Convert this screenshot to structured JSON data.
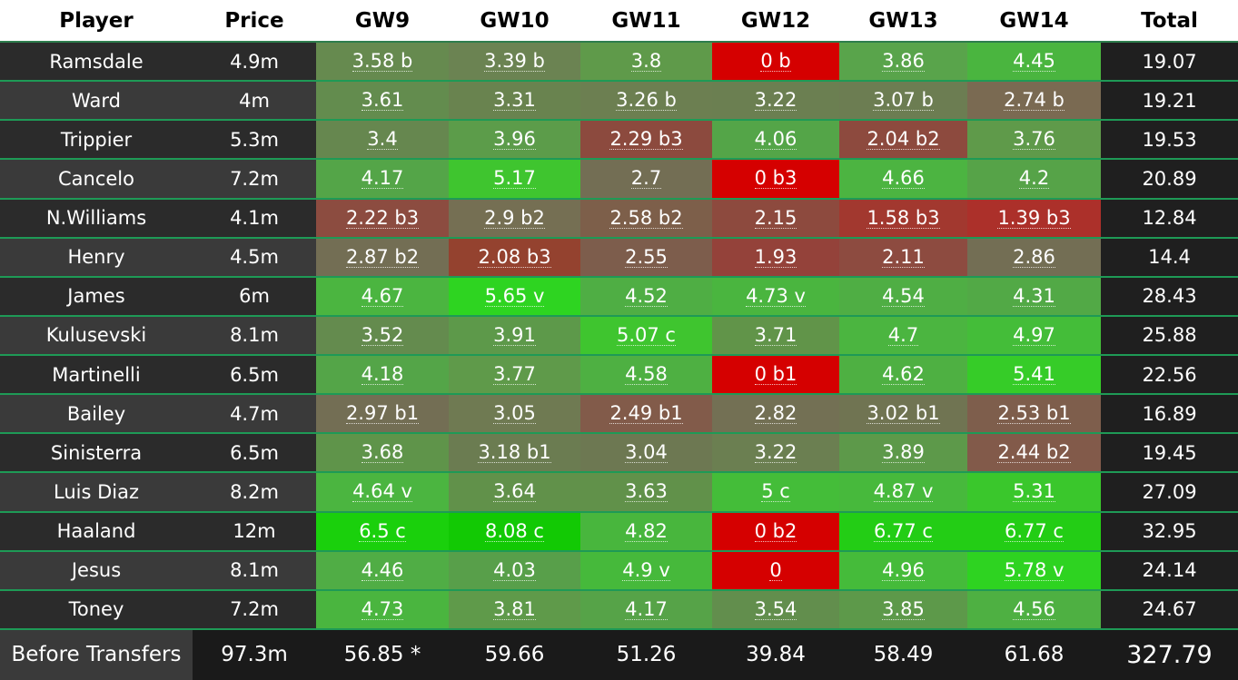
{
  "headers": [
    "Player",
    "Price",
    "GW9",
    "GW10",
    "GW11",
    "GW12",
    "GW13",
    "GW14",
    "Total"
  ],
  "rows": [
    {
      "name": "Ramsdale",
      "price": "4.9m",
      "gw": [
        "3.58 b",
        "3.39 b",
        "3.8",
        "0 b",
        "3.86",
        "4.45"
      ],
      "colors": [
        "#668a4f",
        "#6b8352",
        "#5f9a4a",
        "#d50000",
        "#59a44b",
        "#4ab53f"
      ],
      "total": "19.07"
    },
    {
      "name": "Ward",
      "price": "4m",
      "gw": [
        "3.61",
        "3.31",
        "3.26 b",
        "3.22",
        "3.07 b",
        "2.74 b"
      ],
      "colors": [
        "#638c4e",
        "#69834f",
        "#6c7f51",
        "#6b7f51",
        "#6c7d52",
        "#7a6a52"
      ],
      "total": "19.21"
    },
    {
      "name": "Trippier",
      "price": "5.3m",
      "gw": [
        "3.4",
        "3.96",
        "2.29 b3",
        "4.06",
        "2.04 b2",
        "3.76"
      ],
      "colors": [
        "#66874f",
        "#5c9c4a",
        "#8c4a3e",
        "#54a548",
        "#8d4a3e",
        "#5f9a4a"
      ],
      "total": "19.53"
    },
    {
      "name": "Cancelo",
      "price": "7.2m",
      "gw": [
        "4.17",
        "5.17",
        "2.7",
        "0 b3",
        "4.66",
        "4.2"
      ],
      "colors": [
        "#54a548",
        "#3fc52f",
        "#736e54",
        "#d50000",
        "#4cb441",
        "#56a348"
      ],
      "total": "20.89"
    },
    {
      "name": "N.Williams",
      "price": "4.1m",
      "gw": [
        "2.22 b3",
        "2.9 b2",
        "2.58 b2",
        "2.15",
        "1.58 b3",
        "1.39 b3"
      ],
      "colors": [
        "#8c4c40",
        "#756f53",
        "#7d5f4a",
        "#8d4a3e",
        "#a2382f",
        "#ac302a"
      ],
      "total": "12.84"
    },
    {
      "name": "Henry",
      "price": "4.5m",
      "gw": [
        "2.87 b2",
        "2.08 b3",
        "2.55",
        "1.93",
        "2.11",
        "2.86"
      ],
      "colors": [
        "#736e54",
        "#94422f",
        "#7d5d4c",
        "#94423a",
        "#8d4b40",
        "#736e54"
      ],
      "total": "14.4"
    },
    {
      "name": "James",
      "price": "6m",
      "gw": [
        "4.67",
        "5.65 v",
        "4.52",
        "4.73 v",
        "4.54",
        "4.31"
      ],
      "colors": [
        "#4bb540",
        "#2ed421",
        "#4fae44",
        "#4ab53f",
        "#4fae44",
        "#52a946"
      ],
      "total": "28.43"
    },
    {
      "name": "Kulusevski",
      "price": "8.1m",
      "gw": [
        "3.52",
        "3.91",
        "5.07 c",
        "3.71",
        "4.7",
        "4.97"
      ],
      "colors": [
        "#648b4e",
        "#5d994a",
        "#3fc52f",
        "#619449",
        "#4bb540",
        "#44bd39"
      ],
      "total": "25.88"
    },
    {
      "name": "Martinelli",
      "price": "6.5m",
      "gw": [
        "4.18",
        "3.77",
        "4.58",
        "0 b1",
        "4.62",
        "5.41"
      ],
      "colors": [
        "#54a548",
        "#5f9a4a",
        "#4eb042",
        "#d50000",
        "#4eb042",
        "#36cc28"
      ],
      "total": "22.56"
    },
    {
      "name": "Bailey",
      "price": "4.7m",
      "gw": [
        "2.97 b1",
        "3.05",
        "2.49 b1",
        "2.82",
        "3.02 b1",
        "2.53 b1"
      ],
      "colors": [
        "#736e54",
        "#6f7a52",
        "#825b4a",
        "#737054",
        "#707452",
        "#7e5e4c"
      ],
      "total": "16.89"
    },
    {
      "name": "Sinisterra",
      "price": "6.5m",
      "gw": [
        "3.68",
        "3.18 b1",
        "3.04",
        "3.22",
        "3.89",
        "2.44 b2"
      ],
      "colors": [
        "#5f944a",
        "#6b7c51",
        "#6d7852",
        "#6b7f51",
        "#5d994a",
        "#825a4a"
      ],
      "total": "19.45"
    },
    {
      "name": "Luis Diaz",
      "price": "8.2m",
      "gw": [
        "4.64 v",
        "3.64",
        "3.63",
        "5 c",
        "4.87 v",
        "5.31"
      ],
      "colors": [
        "#4bb540",
        "#61914a",
        "#61914a",
        "#44bd39",
        "#47b93c",
        "#3ac72c"
      ],
      "total": "27.09"
    },
    {
      "name": "Haaland",
      "price": "12m",
      "gw": [
        "6.5 c",
        "8.08 c",
        "4.82",
        "0 b2",
        "6.77 c",
        "6.77 c"
      ],
      "colors": [
        "#1ad00c",
        "#12c904",
        "#48b63d",
        "#d50000",
        "#23cd15",
        "#23cd15"
      ],
      "total": "32.95"
    },
    {
      "name": "Jesus",
      "price": "8.1m",
      "gw": [
        "4.46",
        "4.03",
        "4.9 v",
        "0",
        "4.96",
        "5.78 v"
      ],
      "colors": [
        "#50ad45",
        "#589f4a",
        "#46b93b",
        "#d50000",
        "#45bb3a",
        "#2ed321"
      ],
      "total": "24.14"
    },
    {
      "name": "Toney",
      "price": "7.2m",
      "gw": [
        "4.73",
        "3.81",
        "4.17",
        "3.54",
        "3.85",
        "4.56"
      ],
      "colors": [
        "#4ab53f",
        "#5f9a4a",
        "#56a348",
        "#628e4d",
        "#5d994a",
        "#4eb042"
      ],
      "total": "24.67"
    }
  ],
  "footer": {
    "label": "Before Transfers",
    "price": "97.3m",
    "gw": [
      "56.85 *",
      "59.66",
      "51.26",
      "39.84",
      "58.49",
      "61.68"
    ],
    "total": "327.79"
  }
}
